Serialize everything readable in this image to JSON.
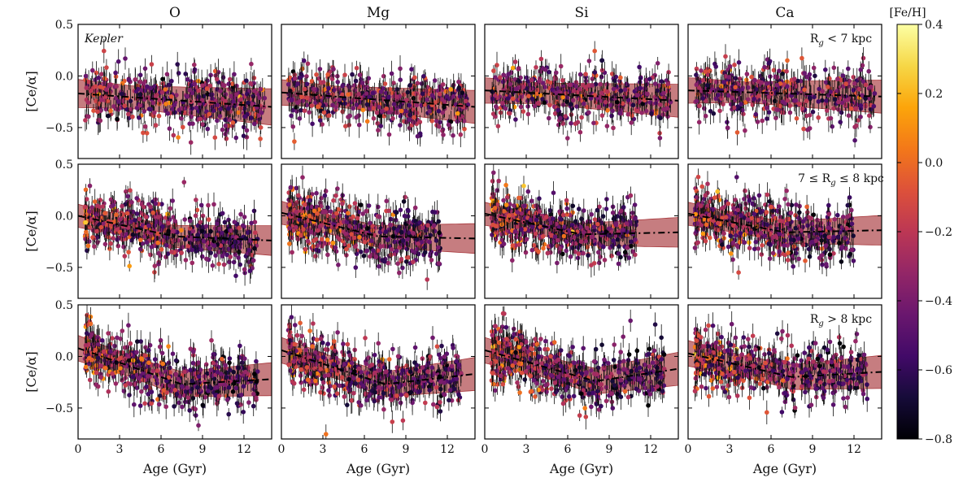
{
  "figure": {
    "columns": [
      "O",
      "Mg",
      "Si",
      "Ca"
    ],
    "rows": [
      {
        "annotation_left": "Kepler",
        "annotation_right": "R",
        "annotation_sub": "g",
        "annotation_tail": " < 7 kpc"
      },
      {
        "annotation_left": "",
        "annotation_right": "7 ≤ R",
        "annotation_sub": "g",
        "annotation_tail": " ≤ 8 kpc"
      },
      {
        "annotation_left": "",
        "annotation_right": "R",
        "annotation_sub": "g",
        "annotation_tail": " > 8 kpc"
      }
    ],
    "ylabel": "[Ce/α]",
    "xlabel": "Age (Gyr)",
    "colorbar_label": "[Fe/H]",
    "colormap": "inferno",
    "colorbar_range": [
      -0.8,
      0.4
    ],
    "colorbar_ticks": [
      {
        "value": 0.4,
        "label": "0.4"
      },
      {
        "value": 0.2,
        "label": "0.2"
      },
      {
        "value": 0.0,
        "label": "0.0"
      },
      {
        "value": -0.2,
        "label": "−0.2"
      },
      {
        "value": -0.4,
        "label": "−0.4"
      },
      {
        "value": -0.6,
        "label": "−0.6"
      },
      {
        "value": -0.8,
        "label": "−0.8"
      }
    ],
    "band_color": "#a8383c",
    "fit_line_color": "#000000"
  },
  "chart_data": {
    "type": "scatter",
    "xlim": [
      0,
      14
    ],
    "ylim": [
      -0.8,
      0.5
    ],
    "x_ticks": [
      {
        "value": 0,
        "label": "0"
      },
      {
        "value": 3,
        "label": "3"
      },
      {
        "value": 6,
        "label": "6"
      },
      {
        "value": 9,
        "label": "9"
      },
      {
        "value": 12,
        "label": "12"
      }
    ],
    "y_ticks": [
      {
        "value": 0.5,
        "label": "0.5"
      },
      {
        "value": 0.0,
        "label": "0.0"
      },
      {
        "value": -0.5,
        "label": "−0.5"
      }
    ],
    "panels": [
      {
        "row": 0,
        "col": "O",
        "fit": [
          [
            0,
            -0.17
          ],
          [
            14,
            -0.3
          ]
        ],
        "band_halfwidth": 0.11,
        "n_points": 420,
        "x_spread": [
          0.5,
          13.5
        ]
      },
      {
        "row": 0,
        "col": "Mg",
        "fit": [
          [
            0,
            -0.16
          ],
          [
            14,
            -0.3
          ]
        ],
        "band_halfwidth": 0.1,
        "n_points": 420,
        "x_spread": [
          0.5,
          13.5
        ]
      },
      {
        "row": 0,
        "col": "Si",
        "fit": [
          [
            0,
            -0.14
          ],
          [
            14,
            -0.24
          ]
        ],
        "band_halfwidth": 0.1,
        "n_points": 420,
        "x_spread": [
          0.5,
          13.5
        ]
      },
      {
        "row": 0,
        "col": "Ca",
        "fit": [
          [
            0,
            -0.14
          ],
          [
            14,
            -0.2
          ]
        ],
        "band_halfwidth": 0.1,
        "n_points": 420,
        "x_spread": [
          0.5,
          13.5
        ]
      },
      {
        "row": 1,
        "col": "O",
        "fit": [
          [
            0,
            0.0
          ],
          [
            7.0,
            -0.2
          ],
          [
            14,
            -0.24
          ]
        ],
        "band_halfwidth": 0.09,
        "n_points": 520,
        "x_spread": [
          0.5,
          13.0
        ]
      },
      {
        "row": 1,
        "col": "Mg",
        "fit": [
          [
            0,
            0.03
          ],
          [
            7.0,
            -0.2
          ],
          [
            14,
            -0.22
          ]
        ],
        "band_halfwidth": 0.09,
        "n_points": 520,
        "x_spread": [
          0.5,
          11.5
        ]
      },
      {
        "row": 1,
        "col": "Si",
        "fit": [
          [
            0,
            0.02
          ],
          [
            7.0,
            -0.18
          ],
          [
            14,
            -0.16
          ]
        ],
        "band_halfwidth": 0.09,
        "n_points": 520,
        "x_spread": [
          0.5,
          11.0
        ]
      },
      {
        "row": 1,
        "col": "Ca",
        "fit": [
          [
            0,
            0.02
          ],
          [
            7.0,
            -0.16
          ],
          [
            14,
            -0.14
          ]
        ],
        "band_halfwidth": 0.09,
        "n_points": 520,
        "x_spread": [
          0.5,
          12.0
        ]
      },
      {
        "row": 2,
        "col": "O",
        "fit": [
          [
            0,
            0.08
          ],
          [
            7.5,
            -0.27
          ],
          [
            14,
            -0.22
          ]
        ],
        "band_halfwidth": 0.1,
        "n_points": 520,
        "x_spread": [
          0.5,
          13.0
        ]
      },
      {
        "row": 2,
        "col": "Mg",
        "fit": [
          [
            0,
            0.06
          ],
          [
            7.5,
            -0.27
          ],
          [
            14,
            -0.17
          ]
        ],
        "band_halfwidth": 0.1,
        "n_points": 520,
        "x_spread": [
          0.5,
          13.0
        ]
      },
      {
        "row": 2,
        "col": "Si",
        "fit": [
          [
            0,
            0.06
          ],
          [
            8.0,
            -0.24
          ],
          [
            14,
            -0.12
          ]
        ],
        "band_halfwidth": 0.1,
        "n_points": 520,
        "x_spread": [
          0.5,
          13.0
        ]
      },
      {
        "row": 2,
        "col": "Ca",
        "fit": [
          [
            0,
            0.03
          ],
          [
            7.5,
            -0.2
          ],
          [
            14,
            -0.15
          ]
        ],
        "band_halfwidth": 0.1,
        "n_points": 520,
        "x_spread": [
          0.5,
          13.0
        ]
      }
    ]
  }
}
